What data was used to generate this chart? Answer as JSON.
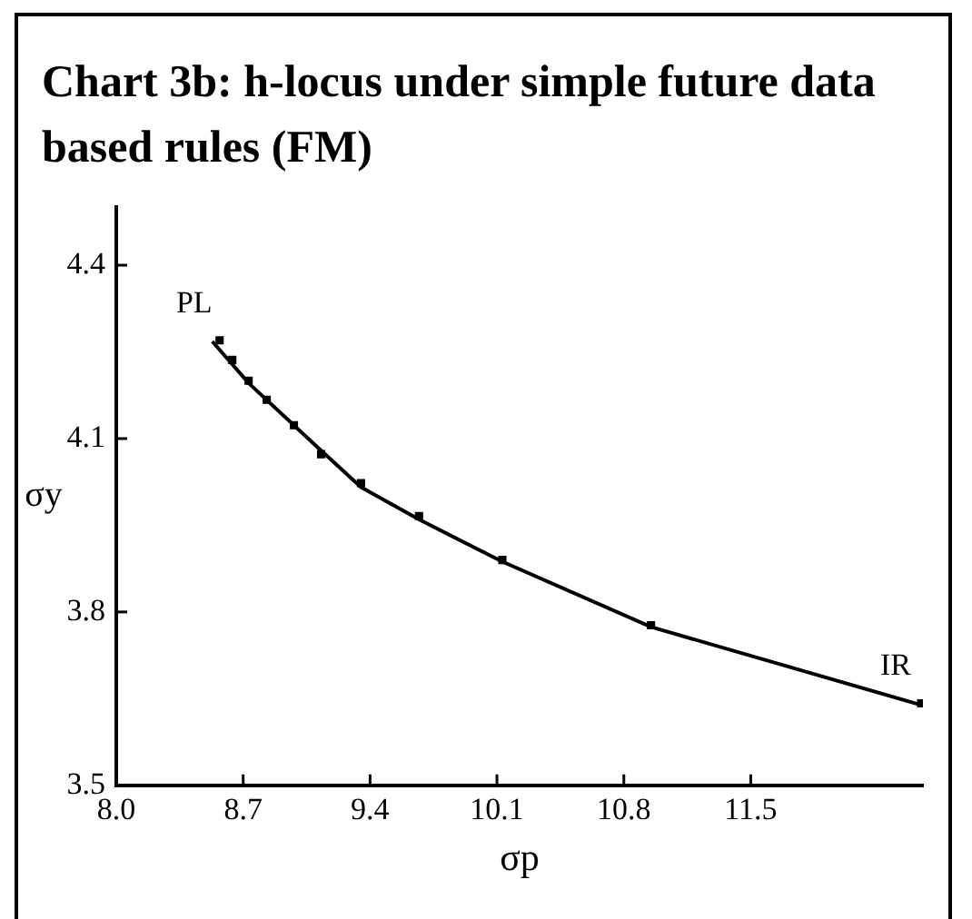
{
  "chart_data": {
    "type": "line",
    "title": "Chart 3b: h-locus under simple future data based rules (FM)",
    "xlabel": "σp",
    "ylabel": "σy",
    "xlim": [
      8.0,
      12.45
    ],
    "ylim": [
      3.5,
      4.5
    ],
    "xticks": [
      {
        "value": 8.0,
        "label": "8.0"
      },
      8.7,
      9.4,
      10.1,
      10.8,
      11.5
    ],
    "yticks": [
      {
        "value": 3.5,
        "label": "3.5"
      },
      3.8,
      4.1,
      4.4
    ],
    "grid": false,
    "legend": false,
    "series": [
      {
        "color": "#000000",
        "marker": "none",
        "x": [
          8.53,
          8.73,
          9.11,
          9.35,
          9.67,
          10.13,
          10.95,
          12.44
        ],
        "values": [
          4.268,
          4.196,
          4.085,
          4.016,
          3.96,
          3.887,
          3.774,
          3.639
        ]
      },
      {
        "type": "scatter",
        "color": "#000000",
        "marker": "square",
        "x": [
          8.57,
          8.64,
          8.73,
          8.83,
          8.98,
          9.13,
          9.35,
          9.67,
          10.13,
          10.95,
          12.44
        ],
        "values": [
          4.27,
          4.236,
          4.2,
          4.167,
          4.123,
          4.073,
          4.023,
          3.966,
          3.89,
          3.777,
          3.642
        ]
      }
    ],
    "annotations": [
      {
        "text": "PL",
        "x": 8.57,
        "y": 4.27
      },
      {
        "text": "IR",
        "x": 12.44,
        "y": 3.642
      }
    ]
  }
}
